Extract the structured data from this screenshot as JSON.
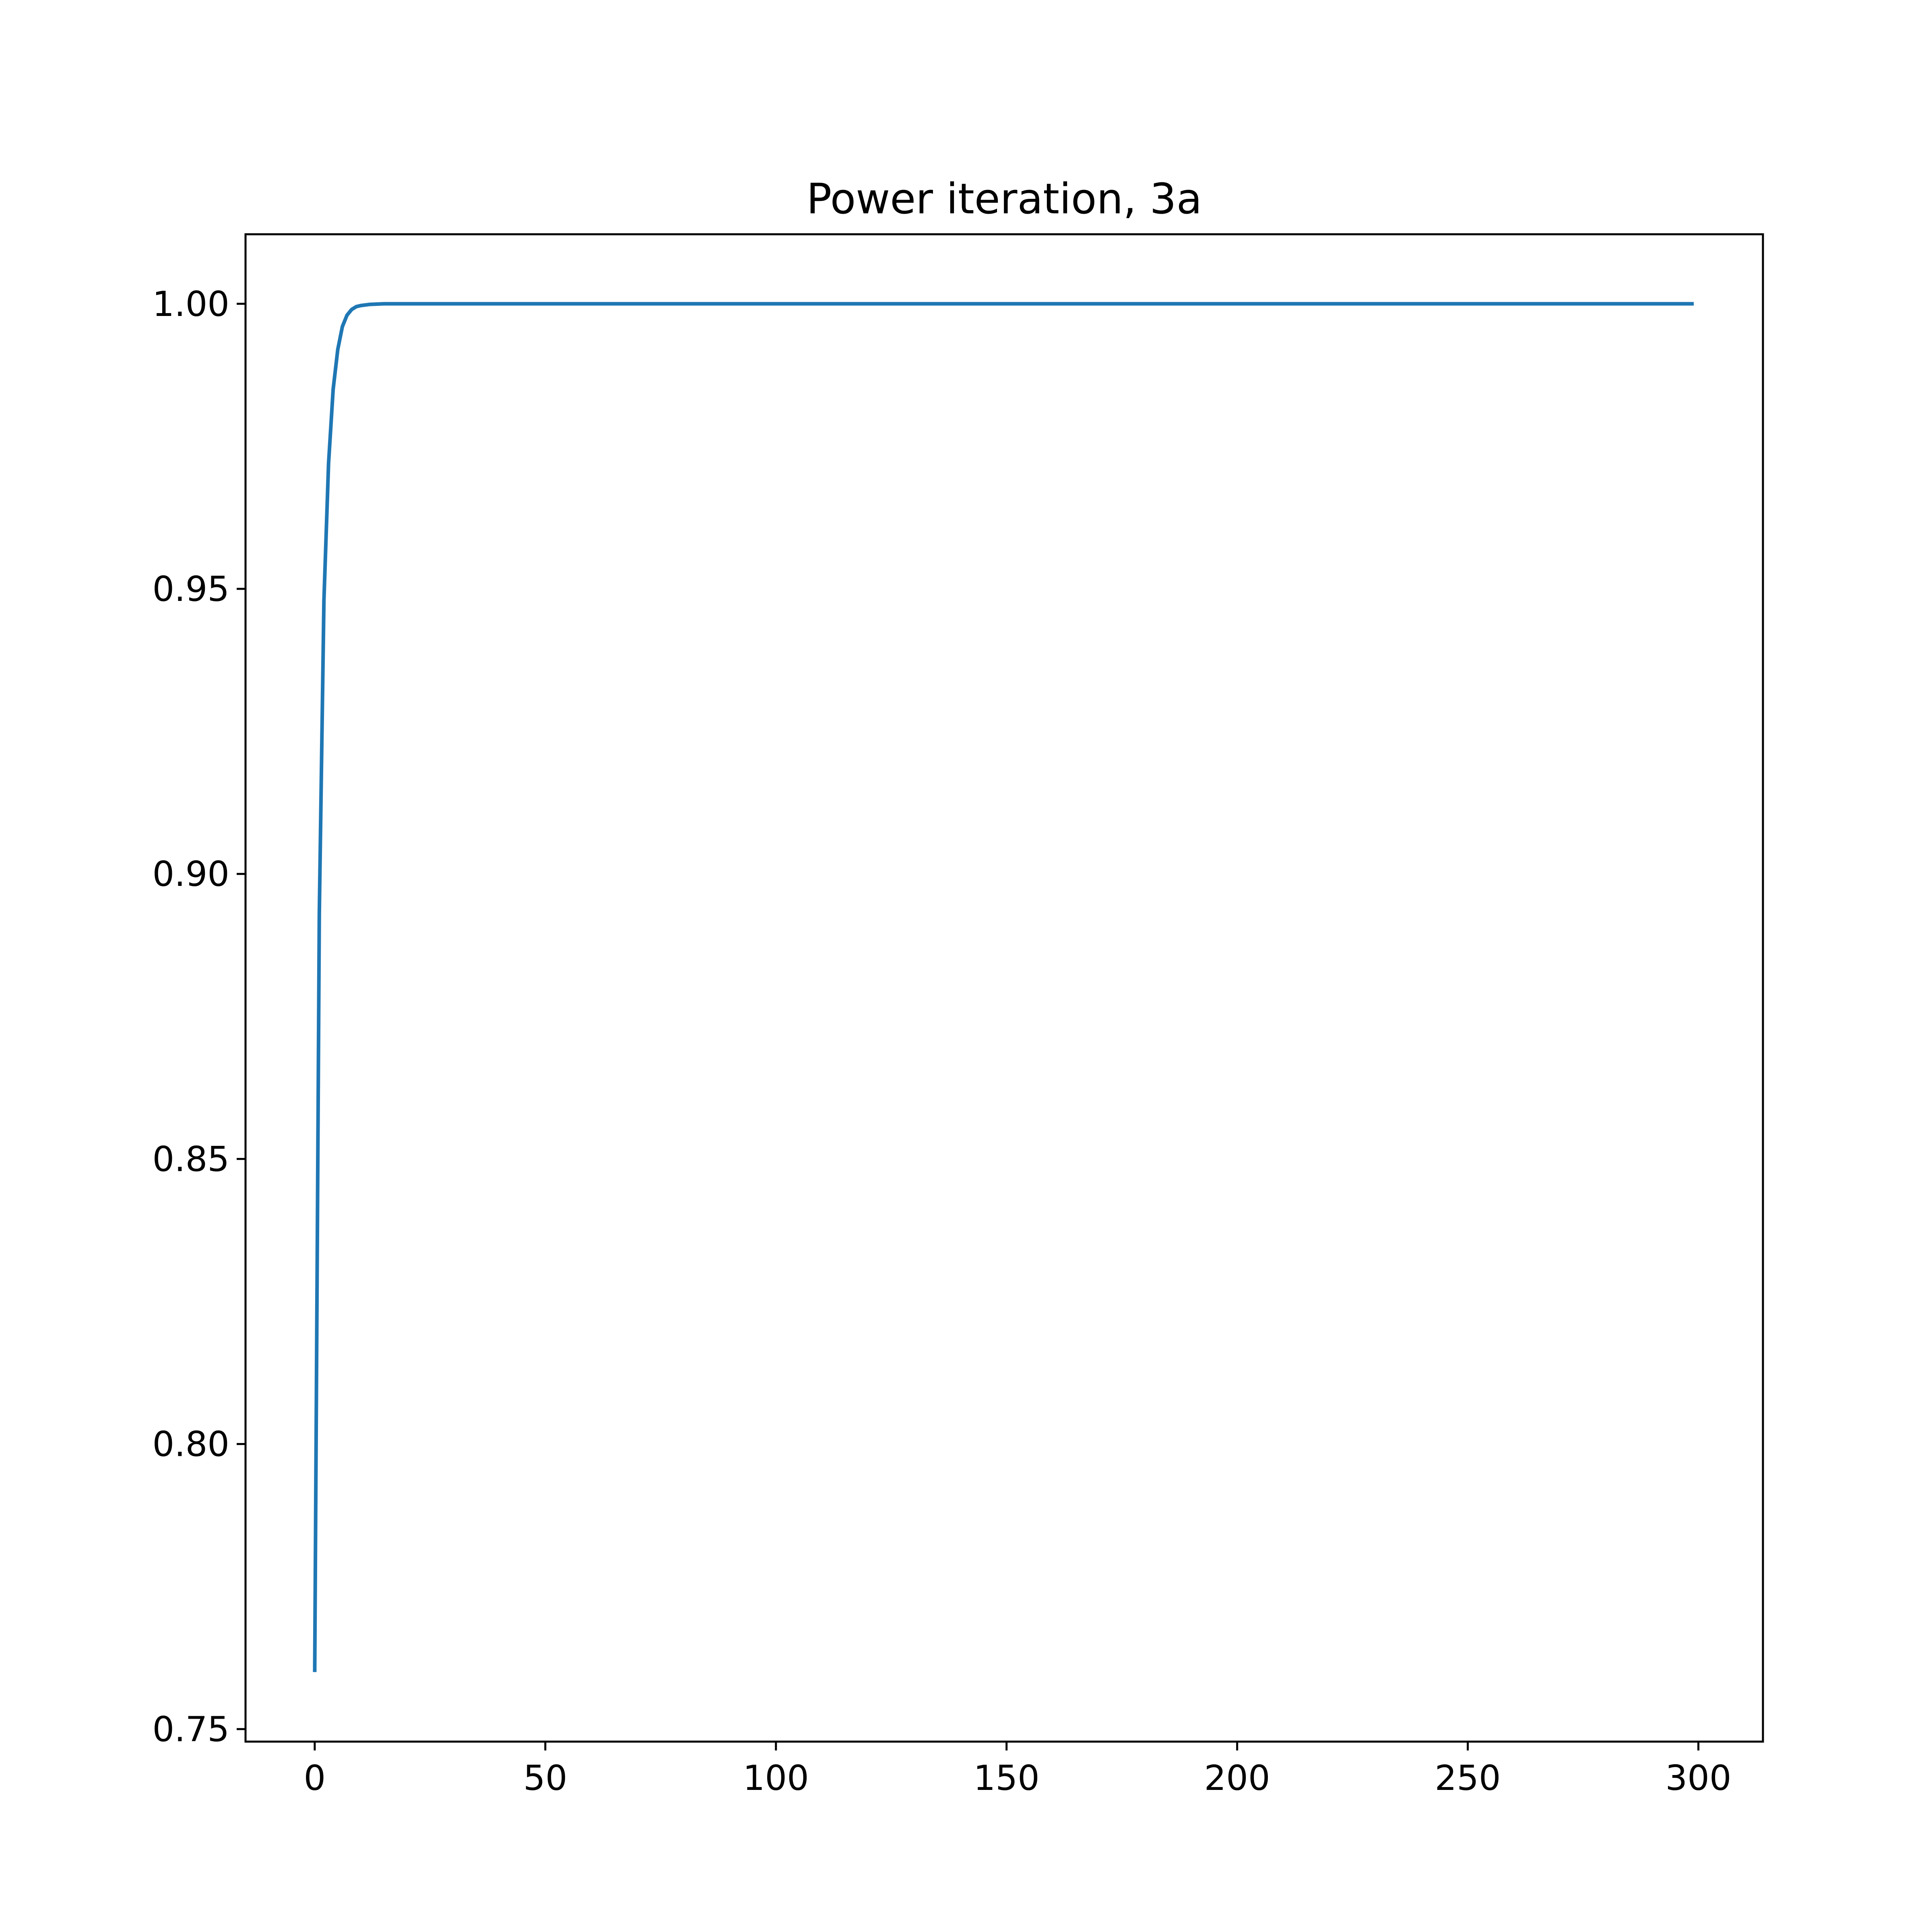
{
  "chart_data": {
    "type": "line",
    "title": "Power iteration, 3a",
    "xlabel": "",
    "ylabel": "",
    "xlim": [
      -15,
      314
    ],
    "ylim": [
      0.7478,
      1.0122
    ],
    "x_ticks": [
      {
        "value": 0,
        "label": "0"
      },
      {
        "value": 50,
        "label": "50"
      },
      {
        "value": 100,
        "label": "100"
      },
      {
        "value": 150,
        "label": "150"
      },
      {
        "value": 200,
        "label": "200"
      },
      {
        "value": 250,
        "label": "250"
      },
      {
        "value": 300,
        "label": "300"
      }
    ],
    "y_ticks": [
      {
        "value": 0.75,
        "label": "0.75"
      },
      {
        "value": 0.8,
        "label": "0.80"
      },
      {
        "value": 0.85,
        "label": "0.85"
      },
      {
        "value": 0.9,
        "label": "0.90"
      },
      {
        "value": 0.95,
        "label": "0.95"
      },
      {
        "value": 1.0,
        "label": "1.00"
      }
    ],
    "grid": false,
    "legend": false,
    "series": [
      {
        "color": "#1f77b4",
        "x": [
          0,
          1,
          2,
          3,
          4,
          5,
          6,
          7,
          8,
          9,
          10,
          12,
          15,
          20,
          30,
          50,
          100,
          150,
          200,
          250,
          299
        ],
        "y": [
          0.76,
          0.893,
          0.948,
          0.972,
          0.985,
          0.992,
          0.996,
          0.998,
          0.999,
          0.9995,
          0.9997,
          0.9999,
          1.0,
          1.0,
          1.0,
          1.0,
          1.0,
          1.0,
          1.0,
          1.0,
          1.0
        ]
      }
    ]
  }
}
